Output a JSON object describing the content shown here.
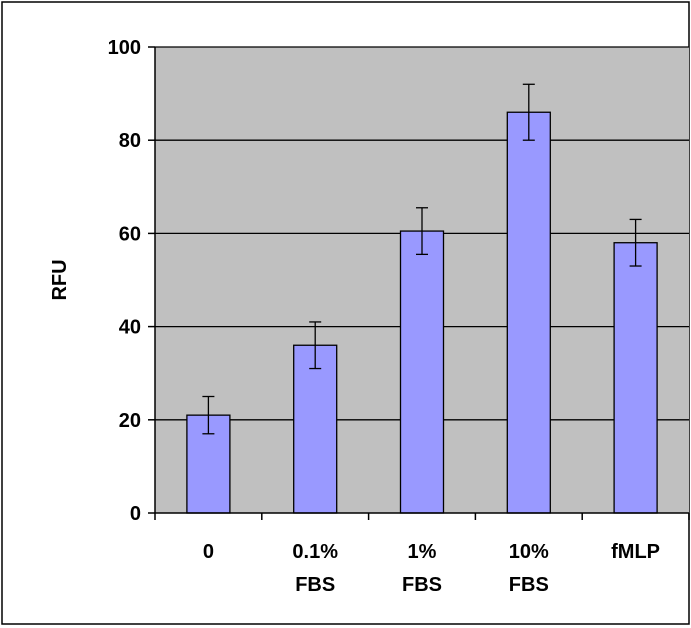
{
  "chart_data": {
    "type": "bar",
    "categories": [
      [
        "0"
      ],
      [
        "0.1%",
        "FBS"
      ],
      [
        "1%",
        "FBS"
      ],
      [
        "10%",
        "FBS"
      ],
      [
        "fMLP"
      ]
    ],
    "values": [
      21,
      36,
      60.5,
      86,
      58
    ],
    "error": [
      4,
      5,
      5,
      6,
      5
    ],
    "ylabel": "RFU",
    "xlabel": "",
    "ylim": [
      0,
      100
    ],
    "yticks": [
      0,
      20,
      40,
      60,
      80,
      100
    ],
    "grid": true,
    "legend": "none",
    "colors": {
      "plot_background": "#c0c0c0",
      "bar_fill": "#9999ff",
      "bar_stroke": "#000000",
      "gridline": "#000000",
      "frame": "#000000"
    }
  }
}
